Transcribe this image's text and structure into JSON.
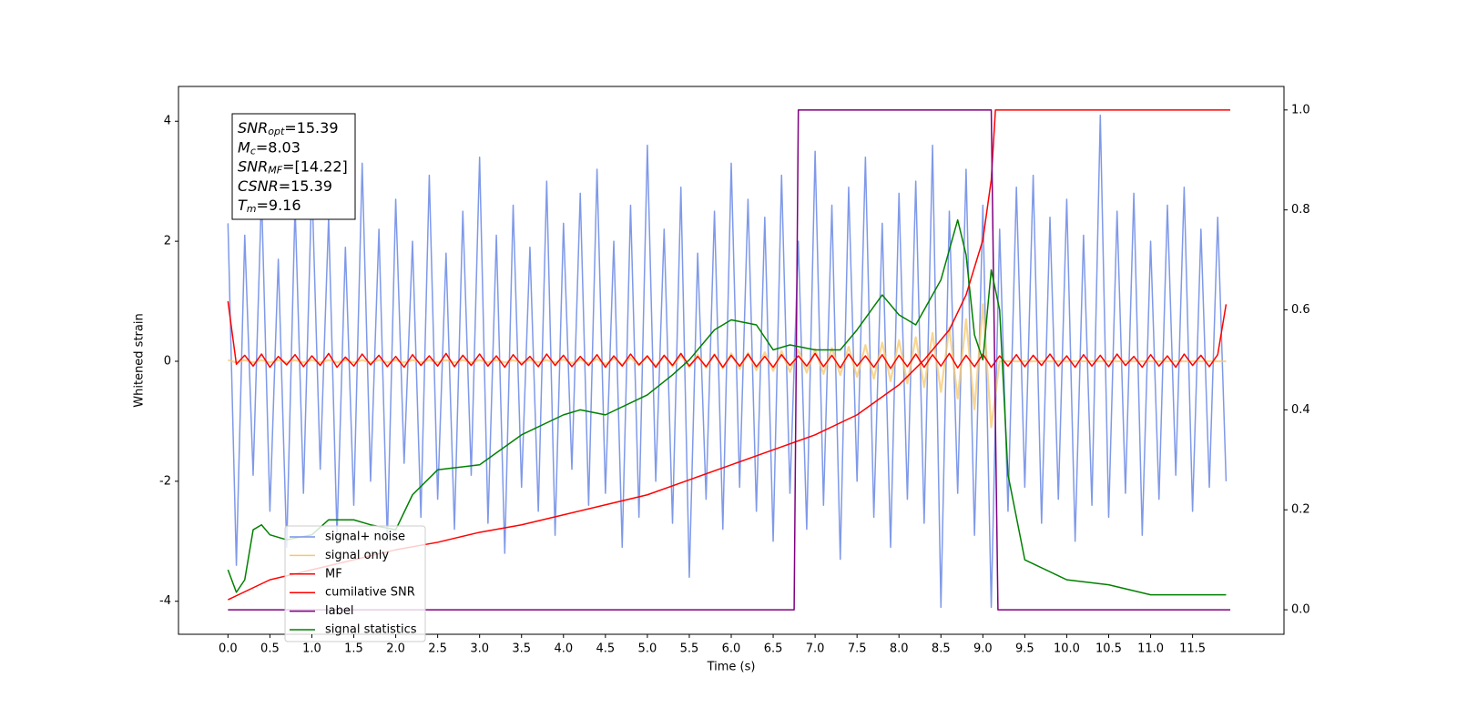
{
  "chart_data": {
    "type": "line",
    "xlabel": "Time (s)",
    "ylabel": "Whitened strain",
    "xlim": [
      -0.59,
      12.59
    ],
    "ylim": [
      -4.55,
      4.58
    ],
    "y2lim": [
      -0.049,
      1.047
    ],
    "xticks": [
      {
        "value": 0,
        "label": "0.0"
      },
      {
        "value": 0.5,
        "label": "0.5"
      },
      {
        "value": 1,
        "label": "1.0"
      },
      {
        "value": 1.5,
        "label": "1.5"
      },
      {
        "value": 2,
        "label": "2.0"
      },
      {
        "value": 2.5,
        "label": "2.5"
      },
      {
        "value": 3,
        "label": "3.0"
      },
      {
        "value": 3.5,
        "label": "3.5"
      },
      {
        "value": 4,
        "label": "4.0"
      },
      {
        "value": 4.5,
        "label": "4.5"
      },
      {
        "value": 5,
        "label": "5.0"
      },
      {
        "value": 5.5,
        "label": "5.5"
      },
      {
        "value": 6,
        "label": "6.0"
      },
      {
        "value": 6.5,
        "label": "6.5"
      },
      {
        "value": 7,
        "label": "7.0"
      },
      {
        "value": 7.5,
        "label": "7.5"
      },
      {
        "value": 8,
        "label": "8.0"
      },
      {
        "value": 8.5,
        "label": "8.5"
      },
      {
        "value": 9,
        "label": "9.0"
      },
      {
        "value": 9.5,
        "label": "9.5"
      },
      {
        "value": 10,
        "label": "10.0"
      },
      {
        "value": 10.5,
        "label": "10.5"
      },
      {
        "value": 11,
        "label": "11.0"
      },
      {
        "value": 11.5,
        "label": "11.5"
      }
    ],
    "yticks": [
      -4,
      -2,
      0,
      2,
      4
    ],
    "y2ticks": [
      {
        "value": 0,
        "label": "0.0"
      },
      {
        "value": 0.2,
        "label": "0.2"
      },
      {
        "value": 0.4,
        "label": "0.4"
      },
      {
        "value": 0.6,
        "label": "0.6"
      },
      {
        "value": 0.8,
        "label": "0.8"
      },
      {
        "value": 1,
        "label": "1.0"
      }
    ],
    "legend": "lower left",
    "annotation": [
      {
        "symbol": "SNR",
        "sub": "opt",
        "text": "=15.39"
      },
      {
        "symbol": "M",
        "sub": "c",
        "text": "=8.03"
      },
      {
        "symbol": "SNR",
        "sub": "MF",
        "text": "=[14.22]"
      },
      {
        "symbol": "CSNR",
        "sub": null,
        "text": "=15.39"
      },
      {
        "symbol": "T",
        "sub": "m",
        "text": "=9.16"
      }
    ],
    "x": [
      0,
      0.1,
      0.2,
      0.3,
      0.4,
      0.5,
      0.6,
      0.7,
      0.8,
      0.9,
      1,
      1.1,
      1.2,
      1.3,
      1.4,
      1.5,
      1.6,
      1.7,
      1.8,
      1.9,
      2,
      2.1,
      2.2,
      2.3,
      2.4,
      2.5,
      2.6,
      2.7,
      2.8,
      2.9,
      3,
      3.1,
      3.2,
      3.3,
      3.4,
      3.5,
      3.6,
      3.7,
      3.8,
      3.9,
      4,
      4.1,
      4.2,
      4.3,
      4.4,
      4.5,
      4.6,
      4.7,
      4.8,
      4.9,
      5,
      5.1,
      5.2,
      5.3,
      5.4,
      5.5,
      5.6,
      5.7,
      5.8,
      5.9,
      6,
      6.1,
      6.2,
      6.3,
      6.4,
      6.5,
      6.6,
      6.7,
      6.8,
      6.9,
      7,
      7.1,
      7.2,
      7.3,
      7.4,
      7.5,
      7.6,
      7.7,
      7.8,
      7.9,
      8,
      8.1,
      8.2,
      8.3,
      8.4,
      8.5,
      8.6,
      8.7,
      8.8,
      8.9,
      9,
      9.1,
      9.2,
      9.3,
      9.4,
      9.5,
      9.6,
      9.7,
      9.8,
      9.9,
      10,
      10.1,
      10.2,
      10.3,
      10.4,
      10.5,
      10.6,
      10.7,
      10.8,
      10.9,
      11,
      11.1,
      11.2,
      11.3,
      11.4,
      11.5,
      11.6,
      11.7,
      11.8,
      11.9
    ],
    "series": [
      {
        "name": "signal+ noise",
        "color": "#7893e8",
        "values": [
          2.3,
          -3.4,
          2.1,
          -1.9,
          2.8,
          -2.5,
          1.7,
          -3.1,
          2.6,
          -2.2,
          3.0,
          -1.8,
          2.4,
          -2.9,
          1.9,
          -2.4,
          3.3,
          -2.0,
          2.2,
          -3.0,
          2.7,
          -1.7,
          2.0,
          -2.6,
          3.1,
          -2.3,
          1.8,
          -2.8,
          2.5,
          -1.9,
          3.4,
          -2.7,
          2.1,
          -3.2,
          2.6,
          -2.1,
          1.9,
          -2.5,
          3.0,
          -2.9,
          2.3,
          -1.8,
          2.8,
          -2.4,
          3.2,
          -2.2,
          2.0,
          -3.1,
          2.6,
          -2.6,
          3.6,
          -2.0,
          2.2,
          -2.7,
          2.9,
          -3.6,
          1.8,
          -2.3,
          2.5,
          -2.8,
          3.3,
          -2.1,
          2.7,
          -2.5,
          2.4,
          -3.0,
          3.1,
          -2.2,
          2.0,
          -2.8,
          3.5,
          -2.4,
          2.6,
          -3.3,
          2.9,
          -2.0,
          3.4,
          -2.6,
          2.3,
          -3.1,
          2.8,
          -2.3,
          3.0,
          -2.7,
          3.6,
          -4.1,
          2.5,
          -2.2,
          3.2,
          -2.9,
          2.6,
          -4.1,
          2.2,
          -2.5,
          2.9,
          -2.1,
          3.1,
          -2.7,
          2.4,
          -2.3,
          2.7,
          -3.0,
          2.1,
          -2.4,
          4.1,
          -2.6,
          2.5,
          -2.2,
          2.8,
          -2.9,
          2.0,
          -2.3,
          2.6,
          -1.9,
          2.9,
          -2.5,
          2.2,
          -2.1,
          2.4,
          -2.0
        ]
      },
      {
        "name": "signal only",
        "color": "#f5c86e",
        "values": [
          0.02,
          -0.02,
          0.02,
          -0.02,
          0.02,
          -0.02,
          0.02,
          -0.02,
          0.02,
          -0.02,
          0.02,
          -0.02,
          0.02,
          -0.02,
          0.02,
          -0.02,
          0.02,
          -0.02,
          0.02,
          -0.02,
          0.02,
          -0.02,
          0.02,
          -0.02,
          0.02,
          -0.02,
          0.02,
          -0.02,
          0.02,
          -0.02,
          0.02,
          -0.02,
          0.02,
          -0.02,
          0.02,
          -0.02,
          0.02,
          -0.02,
          0.02,
          -0.02,
          0.03,
          -0.03,
          0.03,
          -0.04,
          0.04,
          -0.05,
          0.05,
          -0.06,
          0.06,
          -0.07,
          0.08,
          -0.08,
          0.09,
          -0.09,
          0.1,
          -0.1,
          0.11,
          -0.11,
          0.12,
          -0.12,
          0.13,
          -0.13,
          0.14,
          -0.15,
          0.15,
          -0.16,
          0.17,
          -0.18,
          0.19,
          -0.19,
          0.2,
          -0.21,
          0.22,
          -0.23,
          0.24,
          -0.26,
          0.27,
          -0.29,
          0.31,
          -0.33,
          0.35,
          -0.37,
          0.4,
          -0.43,
          0.47,
          -0.51,
          0.56,
          -0.62,
          0.7,
          -0.8,
          0.95,
          -1.1,
          0,
          0,
          0,
          0,
          0,
          0,
          0,
          0,
          0,
          0,
          0,
          0,
          0,
          0,
          0,
          0,
          0,
          0,
          0,
          0,
          0,
          0,
          0,
          0,
          0,
          0,
          0,
          0
        ]
      },
      {
        "name": "MF",
        "color": "#ff0000",
        "values": [
          1.0,
          -0.05,
          0.1,
          -0.08,
          0.12,
          -0.1,
          0.08,
          -0.06,
          0.11,
          -0.09,
          0.09,
          -0.07,
          0.13,
          -0.1,
          0.07,
          -0.08,
          0.12,
          -0.06,
          0.1,
          -0.09,
          0.08,
          -0.1,
          0.11,
          -0.07,
          0.09,
          -0.08,
          0.13,
          -0.09,
          0.1,
          -0.07,
          0.12,
          -0.08,
          0.09,
          -0.1,
          0.11,
          -0.06,
          0.08,
          -0.09,
          0.12,
          -0.07,
          0.1,
          -0.09,
          0.08,
          -0.07,
          0.11,
          -0.1,
          0.09,
          -0.08,
          0.12,
          -0.06,
          0.09,
          -0.1,
          0.1,
          -0.07,
          0.13,
          -0.08,
          0.08,
          -0.09,
          0.11,
          -0.1,
          0.1,
          -0.08,
          0.12,
          -0.09,
          0.08,
          -0.1,
          0.11,
          -0.07,
          0.09,
          -0.08,
          0.13,
          -0.09,
          0.1,
          -0.11,
          0.12,
          -0.08,
          0.09,
          -0.1,
          0.11,
          -0.12,
          0.1,
          -0.09,
          0.12,
          -0.1,
          0.11,
          -0.08,
          0.13,
          -0.11,
          0.1,
          -0.09,
          0.12,
          -0.1,
          0.09,
          -0.08,
          0.11,
          -0.09,
          0.1,
          -0.07,
          0.12,
          -0.08,
          0.09,
          -0.1,
          0.11,
          -0.08,
          0.1,
          -0.09,
          0.12,
          -0.07,
          0.08,
          -0.1,
          0.11,
          -0.08,
          0.09,
          -0.1,
          0.12,
          -0.07,
          0.1,
          -0.09,
          0.11,
          0.95
        ]
      },
      {
        "name": "cumilative SNR",
        "color": "#ff0000",
        "axis": "y2",
        "x": [
          0,
          0.5,
          1,
          1.5,
          2,
          2.5,
          3,
          3.5,
          4,
          4.5,
          5,
          5.5,
          6,
          6.5,
          7,
          7.5,
          8,
          8.3,
          8.6,
          8.8,
          9.0,
          9.1,
          9.15,
          11.95
        ],
        "values": [
          0.02,
          0.06,
          0.08,
          0.1,
          0.12,
          0.135,
          0.155,
          0.17,
          0.19,
          0.21,
          0.23,
          0.26,
          0.29,
          0.32,
          0.35,
          0.39,
          0.45,
          0.5,
          0.56,
          0.63,
          0.74,
          0.86,
          1.0,
          1.0
        ]
      },
      {
        "name": "label",
        "color": "#800080",
        "axis": "y2",
        "x": [
          0,
          6.75,
          6.8,
          9.1,
          9.18,
          11.95
        ],
        "values": [
          0,
          0,
          1,
          1,
          0,
          0
        ]
      },
      {
        "name": "signal statistics",
        "color": "#008000",
        "axis": "y2",
        "x": [
          0,
          0.1,
          0.2,
          0.3,
          0.4,
          0.5,
          0.7,
          1.0,
          1.2,
          1.5,
          1.7,
          2.0,
          2.2,
          2.5,
          3.0,
          3.5,
          4.0,
          4.2,
          4.5,
          5.0,
          5.3,
          5.5,
          5.8,
          6.0,
          6.3,
          6.5,
          6.7,
          7.0,
          7.3,
          7.5,
          7.8,
          8.0,
          8.2,
          8.5,
          8.7,
          8.8,
          8.9,
          9.0,
          9.1,
          9.2,
          9.3,
          9.5,
          10.0,
          10.5,
          11.0,
          11.5,
          11.9
        ],
        "values": [
          0.08,
          0.035,
          0.06,
          0.16,
          0.17,
          0.15,
          0.14,
          0.15,
          0.18,
          0.18,
          0.17,
          0.16,
          0.23,
          0.28,
          0.29,
          0.35,
          0.39,
          0.4,
          0.39,
          0.43,
          0.47,
          0.5,
          0.56,
          0.58,
          0.57,
          0.52,
          0.53,
          0.52,
          0.52,
          0.56,
          0.63,
          0.59,
          0.57,
          0.66,
          0.78,
          0.71,
          0.55,
          0.5,
          0.68,
          0.6,
          0.27,
          0.1,
          0.06,
          0.05,
          0.03,
          0.03,
          0.03
        ]
      }
    ]
  }
}
